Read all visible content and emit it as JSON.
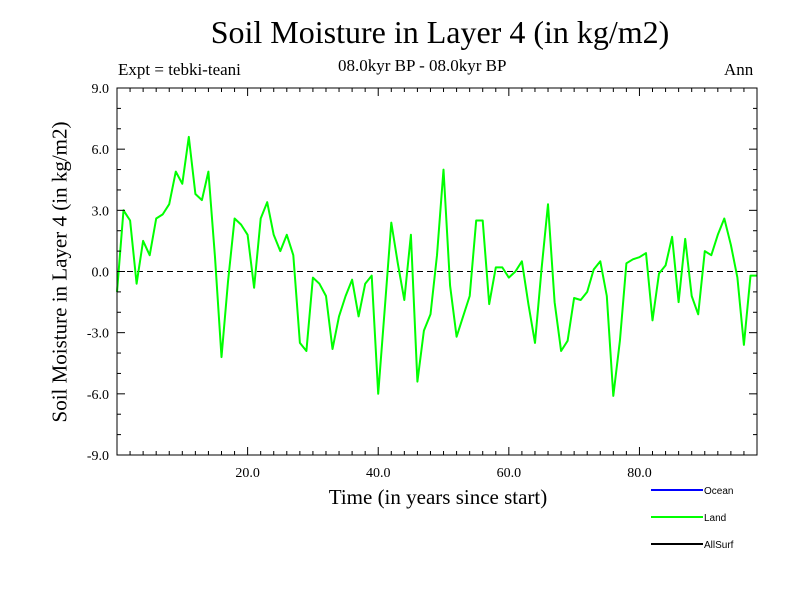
{
  "chart_data": {
    "type": "line",
    "title": "Soil Moisture in Layer 4 (in kg/m2)",
    "experiment": "Expt = tebki-teani",
    "period": "08.0kyr BP - 08.0kyr BP",
    "season": "Ann",
    "xlabel": "Time (in years since start)",
    "ylabel": "Soil Moisture in Layer 4 (in kg/m2)",
    "xlim": [
      0,
      98
    ],
    "ylim": [
      -9,
      9
    ],
    "xticks": [
      20,
      40,
      60,
      80
    ],
    "xtick_labels": [
      "20.0",
      "40.0",
      "60.0",
      "80.0"
    ],
    "yticks": [
      -9,
      -6,
      -3,
      0,
      3,
      6,
      9
    ],
    "ytick_labels": [
      "-9.0",
      "-6.0",
      "-3.0",
      "0.0",
      "3.0",
      "6.0",
      "9.0"
    ],
    "zero_line": true,
    "legend": [
      {
        "name": "Ocean",
        "color": "#0000ff"
      },
      {
        "name": "Land",
        "color": "#00ff00"
      },
      {
        "name": "AllSurf",
        "color": "#000000"
      }
    ],
    "series": [
      {
        "name": "Land",
        "color": "#00ff00",
        "x": [
          0,
          1,
          2,
          3,
          4,
          5,
          6,
          7,
          8,
          9,
          10,
          11,
          12,
          13,
          14,
          15,
          16,
          17,
          18,
          19,
          20,
          21,
          22,
          23,
          24,
          25,
          26,
          27,
          28,
          29,
          30,
          31,
          32,
          33,
          34,
          35,
          36,
          37,
          38,
          39,
          40,
          41,
          42,
          43,
          44,
          45,
          46,
          47,
          48,
          49,
          50,
          51,
          52,
          53,
          54,
          55,
          56,
          57,
          58,
          59,
          60,
          61,
          62,
          63,
          64,
          65,
          66,
          67,
          68,
          69,
          70,
          71,
          72,
          73,
          74,
          75,
          76,
          77,
          78,
          79,
          80,
          81,
          82,
          83,
          84,
          85,
          86,
          87,
          88,
          89,
          90,
          91,
          92,
          93,
          94,
          95,
          96,
          97,
          98
        ],
        "values": [
          -1.0,
          3.0,
          2.5,
          -0.6,
          1.5,
          0.8,
          2.6,
          2.8,
          3.3,
          4.9,
          4.3,
          6.6,
          3.8,
          3.5,
          4.9,
          0.7,
          -4.2,
          -0.5,
          2.6,
          2.3,
          1.8,
          -0.8,
          2.6,
          3.4,
          1.8,
          1.0,
          1.8,
          0.8,
          -3.5,
          -3.9,
          -0.3,
          -0.6,
          -1.2,
          -3.8,
          -2.2,
          -1.2,
          -0.4,
          -2.2,
          -0.6,
          -0.2,
          -6.0,
          -1.8,
          2.4,
          0.4,
          -1.4,
          1.8,
          -5.4,
          -2.9,
          -2.1,
          0.8,
          5.0,
          -0.7,
          -3.2,
          -2.2,
          -1.2,
          2.5,
          2.5,
          -1.6,
          0.2,
          0.2,
          -0.3,
          0.0,
          0.5,
          -1.6,
          -3.5,
          0.1,
          3.3,
          -1.5,
          -3.9,
          -3.4,
          -1.3,
          -1.4,
          -1.0,
          0.1,
          0.5,
          -1.2,
          -6.1,
          -3.4,
          0.4,
          0.6,
          0.7,
          0.9,
          -2.4,
          -0.1,
          0.3,
          1.7,
          -1.5,
          1.6,
          -1.2,
          -2.1,
          1.0,
          0.8,
          1.8,
          2.6,
          1.3,
          -0.3,
          -3.6,
          -0.2,
          -0.2
        ]
      }
    ]
  }
}
